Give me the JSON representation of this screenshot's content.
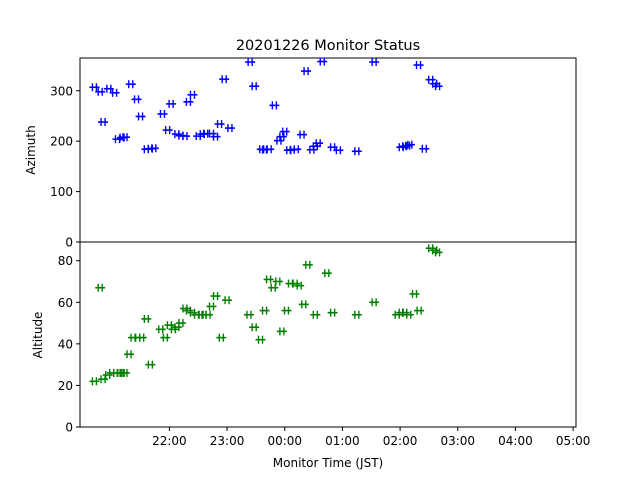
{
  "chart_data": {
    "title": "20201226 Monitor Status",
    "xlabel": "Monitor Time (JST)",
    "type": "scatter",
    "x_unit": "hours since 21:00 JST",
    "x_range": [
      -0.55,
      8.05
    ],
    "x_ticks": [
      {
        "x": 1,
        "label": "22:00"
      },
      {
        "x": 2,
        "label": "23:00"
      },
      {
        "x": 3,
        "label": "00:00"
      },
      {
        "x": 4,
        "label": "01:00"
      },
      {
        "x": 5,
        "label": "02:00"
      },
      {
        "x": 6,
        "label": "03:00"
      },
      {
        "x": 7,
        "label": "04:00"
      },
      {
        "x": 8,
        "label": "05:00"
      }
    ],
    "panels": [
      {
        "ylabel": "Azimuth",
        "ylim": [
          0,
          365
        ],
        "yticks": [
          0,
          100,
          200,
          300
        ],
        "marker_color": "#0000ff",
        "points": [
          [
            -0.3,
            307
          ],
          [
            -0.2,
            298
          ],
          [
            -0.15,
            238
          ],
          [
            -0.05,
            304
          ],
          [
            0.05,
            296
          ],
          [
            0.1,
            204
          ],
          [
            0.18,
            207
          ],
          [
            0.23,
            208
          ],
          [
            0.33,
            313
          ],
          [
            0.43,
            283
          ],
          [
            0.5,
            249
          ],
          [
            0.6,
            184
          ],
          [
            0.67,
            185
          ],
          [
            0.73,
            186
          ],
          [
            0.88,
            254
          ],
          [
            0.97,
            222
          ],
          [
            1.03,
            274
          ],
          [
            1.13,
            214
          ],
          [
            1.2,
            211
          ],
          [
            1.27,
            210
          ],
          [
            1.33,
            278
          ],
          [
            1.4,
            292
          ],
          [
            1.5,
            210
          ],
          [
            1.57,
            214
          ],
          [
            1.63,
            215
          ],
          [
            1.73,
            215
          ],
          [
            1.8,
            209
          ],
          [
            1.87,
            234
          ],
          [
            1.95,
            323
          ],
          [
            2.05,
            226
          ],
          [
            2.4,
            357
          ],
          [
            2.47,
            309
          ],
          [
            2.6,
            184
          ],
          [
            2.65,
            183
          ],
          [
            2.73,
            184
          ],
          [
            2.82,
            271
          ],
          [
            2.9,
            201
          ],
          [
            2.95,
            209
          ],
          [
            3.0,
            219
          ],
          [
            3.07,
            182
          ],
          [
            3.13,
            183
          ],
          [
            3.2,
            184
          ],
          [
            3.3,
            213
          ],
          [
            3.37,
            339
          ],
          [
            3.47,
            183
          ],
          [
            3.53,
            190
          ],
          [
            3.58,
            196
          ],
          [
            3.65,
            358
          ],
          [
            3.83,
            188
          ],
          [
            3.93,
            182
          ],
          [
            4.25,
            180
          ],
          [
            4.55,
            357
          ],
          [
            5.02,
            188
          ],
          [
            5.08,
            190
          ],
          [
            5.13,
            191
          ],
          [
            5.17,
            193
          ],
          [
            5.32,
            351
          ],
          [
            5.42,
            185
          ],
          [
            5.53,
            322
          ],
          [
            5.6,
            314
          ],
          [
            5.65,
            309
          ]
        ]
      },
      {
        "ylabel": "Altitude",
        "ylim": [
          0,
          89
        ],
        "yticks": [
          0,
          20,
          40,
          60,
          80
        ],
        "marker_color": "#008000",
        "points": [
          [
            -0.3,
            22
          ],
          [
            -0.2,
            67
          ],
          [
            -0.15,
            23
          ],
          [
            -0.07,
            25
          ],
          [
            0.0,
            26
          ],
          [
            0.07,
            26
          ],
          [
            0.13,
            26
          ],
          [
            0.18,
            26
          ],
          [
            0.23,
            26
          ],
          [
            0.3,
            35
          ],
          [
            0.37,
            43
          ],
          [
            0.45,
            43
          ],
          [
            0.52,
            43
          ],
          [
            0.6,
            52
          ],
          [
            0.67,
            30
          ],
          [
            0.85,
            47
          ],
          [
            0.93,
            43
          ],
          [
            1.0,
            49
          ],
          [
            1.07,
            47
          ],
          [
            1.13,
            48
          ],
          [
            1.2,
            50
          ],
          [
            1.27,
            57
          ],
          [
            1.33,
            56
          ],
          [
            1.4,
            55
          ],
          [
            1.47,
            54
          ],
          [
            1.55,
            54
          ],
          [
            1.6,
            54
          ],
          [
            1.67,
            54
          ],
          [
            1.73,
            58
          ],
          [
            1.8,
            63
          ],
          [
            1.9,
            43
          ],
          [
            2.0,
            61
          ],
          [
            2.38,
            54
          ],
          [
            2.47,
            48
          ],
          [
            2.58,
            42
          ],
          [
            2.65,
            56
          ],
          [
            2.72,
            71
          ],
          [
            2.8,
            67
          ],
          [
            2.88,
            70
          ],
          [
            2.95,
            46
          ],
          [
            3.03,
            56
          ],
          [
            3.1,
            69
          ],
          [
            3.18,
            69
          ],
          [
            3.25,
            68
          ],
          [
            3.33,
            59
          ],
          [
            3.4,
            78
          ],
          [
            3.53,
            54
          ],
          [
            3.73,
            74
          ],
          [
            3.83,
            55
          ],
          [
            4.25,
            54
          ],
          [
            4.55,
            60
          ],
          [
            4.95,
            54
          ],
          [
            5.02,
            55
          ],
          [
            5.08,
            55
          ],
          [
            5.15,
            54
          ],
          [
            5.25,
            64
          ],
          [
            5.33,
            56
          ],
          [
            5.53,
            86
          ],
          [
            5.6,
            85
          ],
          [
            5.65,
            84
          ]
        ]
      }
    ]
  }
}
